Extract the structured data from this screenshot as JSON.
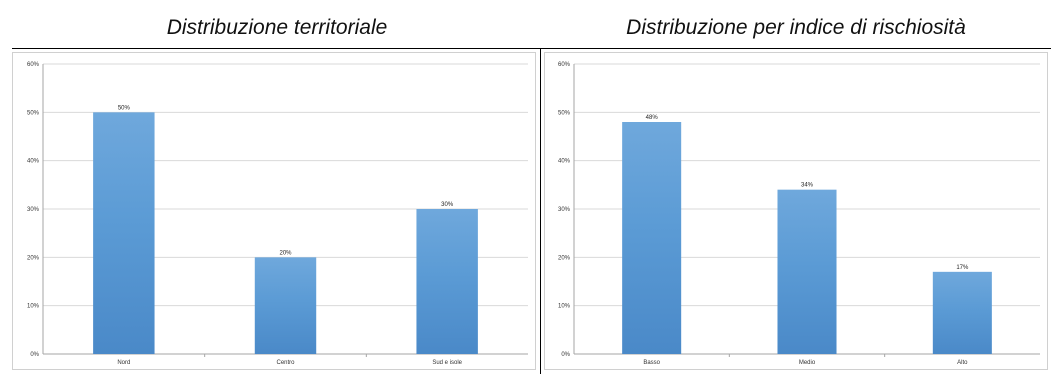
{
  "chart_data": [
    {
      "type": "bar",
      "title": "Distribuzione territoriale",
      "categories": [
        "Nord",
        "Centro",
        "Sud e isole"
      ],
      "values": [
        50,
        20,
        30
      ],
      "data_labels": [
        "50%",
        "20%",
        "30%"
      ],
      "ylim": [
        0,
        60
      ],
      "yticks": [
        0,
        10,
        20,
        30,
        40,
        50,
        60
      ],
      "ytick_labels": [
        "0%",
        "10%",
        "20%",
        "30%",
        "40%",
        "50%",
        "60%"
      ],
      "grid": true,
      "legend": "none",
      "bar_color": "#5b9bd5"
    },
    {
      "type": "bar",
      "title": "Distribuzione per indice di rischiosità",
      "categories": [
        "Basso",
        "Medio",
        "Alto"
      ],
      "values": [
        48,
        34,
        17
      ],
      "data_labels": [
        "48%",
        "34%",
        "17%"
      ],
      "ylim": [
        0,
        60
      ],
      "yticks": [
        0,
        10,
        20,
        30,
        40,
        50,
        60
      ],
      "ytick_labels": [
        "0%",
        "10%",
        "20%",
        "30%",
        "40%",
        "50%",
        "60%"
      ],
      "grid": true,
      "legend": "none",
      "bar_color": "#5b9bd5"
    }
  ]
}
